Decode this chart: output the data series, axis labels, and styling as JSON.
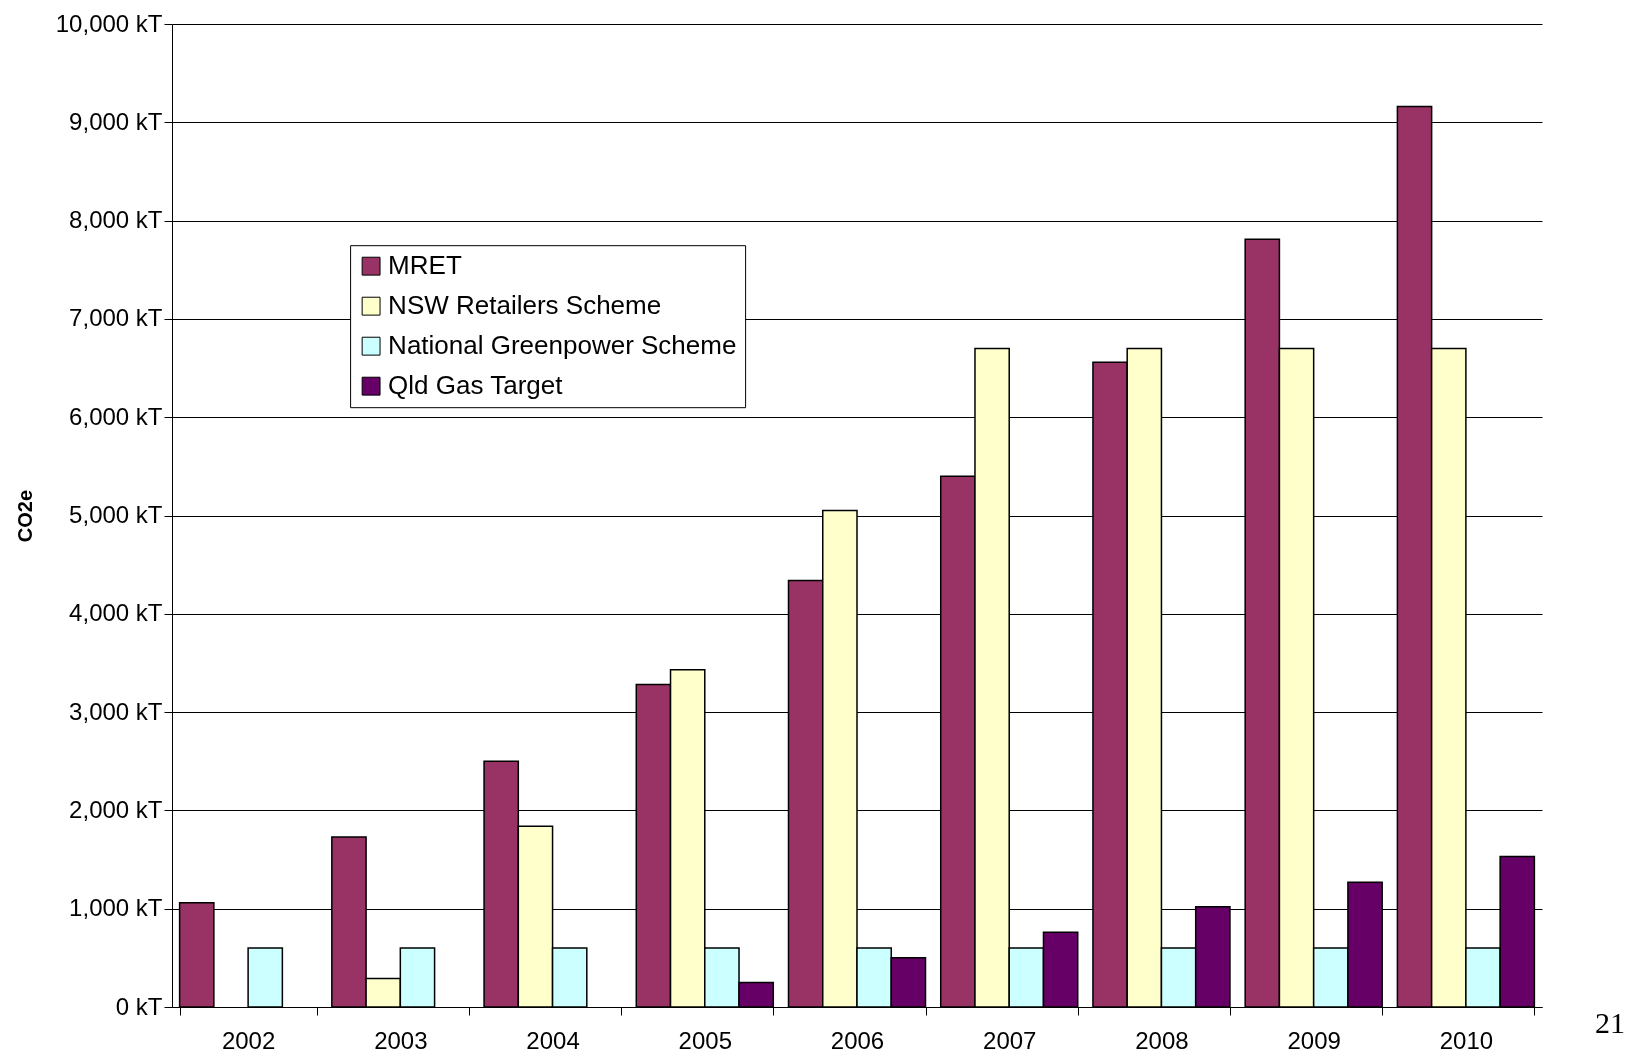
{
  "chart_data": {
    "type": "bar",
    "ylabel": "CO2e",
    "categories": [
      "2002",
      "2003",
      "2004",
      "2005",
      "2006",
      "2007",
      "2008",
      "2009",
      "2010"
    ],
    "series": [
      {
        "name": "MRET",
        "color": "#993366",
        "values": [
          1060,
          1730,
          2500,
          3280,
          4340,
          5400,
          6560,
          7810,
          9160
        ]
      },
      {
        "name": "NSW Retailers Scheme",
        "color": "#ffffcc",
        "values": [
          null,
          290,
          1840,
          3430,
          5050,
          6700,
          6700,
          6700,
          6700
        ]
      },
      {
        "name": "National Greenpower Scheme",
        "color": "#ccffff",
        "values": [
          600,
          600,
          600,
          600,
          600,
          600,
          600,
          600,
          600
        ]
      },
      {
        "name": "Qld Gas Target",
        "color": "#660066",
        "values": [
          null,
          null,
          null,
          250,
          500,
          760,
          1020,
          1270,
          1530
        ]
      }
    ],
    "ylim": [
      0,
      10000
    ],
    "yticks": [
      {
        "value": 0,
        "label": "0 kT"
      },
      {
        "value": 1000,
        "label": "1,000 kT"
      },
      {
        "value": 2000,
        "label": "2,000 kT"
      },
      {
        "value": 3000,
        "label": "3,000 kT"
      },
      {
        "value": 4000,
        "label": "4,000 kT"
      },
      {
        "value": 5000,
        "label": "5,000 kT"
      },
      {
        "value": 6000,
        "label": "6,000 kT"
      },
      {
        "value": 7000,
        "label": "7,000 kT"
      },
      {
        "value": 8000,
        "label": "8,000 kT"
      },
      {
        "value": 9000,
        "label": "9,000 kT"
      },
      {
        "value": 10000,
        "label": "10,000 kT"
      }
    ],
    "grid": "y",
    "legend": "top left",
    "annotations": [
      "21"
    ]
  }
}
